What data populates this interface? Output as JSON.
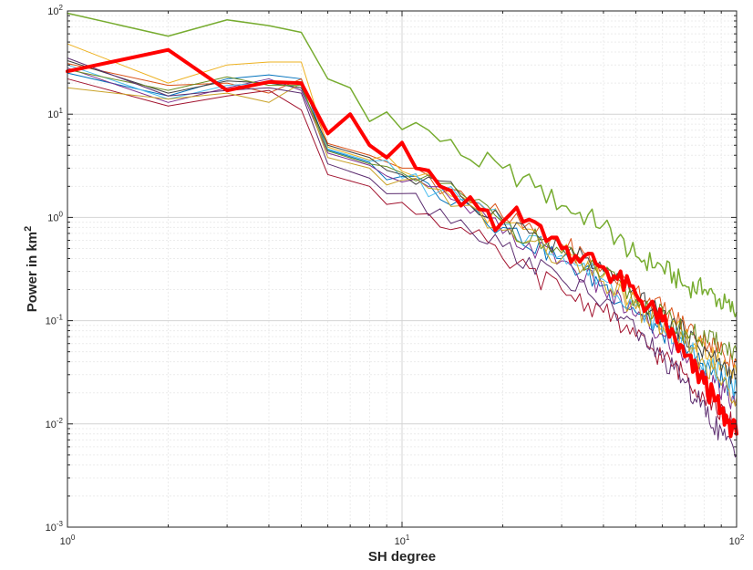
{
  "chart_data": {
    "type": "line",
    "xlabel": "SH degree",
    "ylabel": {
      "text": "Power in km",
      "sup": "2"
    },
    "xscale": "log",
    "yscale": "log",
    "xlim": [
      1,
      100
    ],
    "ylim": [
      0.001,
      100
    ],
    "grid": "major-and-minor",
    "x_ticks": [
      {
        "value": 1,
        "base": "10",
        "exp": "0"
      },
      {
        "value": 10,
        "base": "10",
        "exp": "1"
      },
      {
        "value": 100,
        "base": "10",
        "exp": "2"
      }
    ],
    "y_ticks": [
      {
        "value": 0.001,
        "base": "10",
        "exp": "-3"
      },
      {
        "value": 0.01,
        "base": "10",
        "exp": "-2"
      },
      {
        "value": 0.1,
        "base": "10",
        "exp": "-1"
      },
      {
        "value": 1,
        "base": "10",
        "exp": "0"
      },
      {
        "value": 10,
        "base": "10",
        "exp": "1"
      },
      {
        "value": 100,
        "base": "10",
        "exp": "2"
      }
    ],
    "series": [
      {
        "color": "#77AC30",
        "width": 1.5,
        "anchors": [
          [
            1,
            95
          ],
          [
            2,
            57
          ],
          [
            3,
            82
          ],
          [
            4,
            72
          ],
          [
            5,
            62
          ],
          [
            6,
            22
          ],
          [
            7,
            18
          ],
          [
            8,
            8.5
          ],
          [
            9,
            10.5
          ],
          [
            12,
            7.0
          ],
          [
            15,
            4.0
          ],
          [
            20,
            3.0
          ],
          [
            25,
            1.95
          ],
          [
            30,
            1.3
          ],
          [
            40,
            0.85
          ],
          [
            50,
            0.42
          ],
          [
            60,
            0.33
          ],
          [
            70,
            0.22
          ],
          [
            80,
            0.2
          ],
          [
            100,
            0.12
          ]
        ]
      },
      {
        "color": "#FF0000",
        "width": 4,
        "anchors": [
          [
            1,
            26
          ],
          [
            2,
            42
          ],
          [
            3,
            17
          ],
          [
            4,
            20.5
          ],
          [
            5,
            20
          ],
          [
            6,
            6.5
          ],
          [
            7,
            10
          ],
          [
            8,
            5
          ],
          [
            9,
            3.8
          ],
          [
            10,
            5.3
          ],
          [
            11,
            3.0
          ],
          [
            13,
            2.0
          ],
          [
            15,
            1.3
          ],
          [
            17,
            1.2
          ],
          [
            19,
            0.75
          ],
          [
            22,
            1.25
          ],
          [
            25,
            0.9
          ],
          [
            30,
            0.5
          ],
          [
            35,
            0.42
          ],
          [
            40,
            0.33
          ],
          [
            50,
            0.18
          ],
          [
            60,
            0.1
          ],
          [
            70,
            0.045
          ],
          [
            80,
            0.025
          ],
          [
            90,
            0.013
          ],
          [
            100,
            0.008
          ]
        ]
      },
      {
        "color": "#0072BD",
        "width": 1,
        "anchors": [
          [
            1,
            25
          ],
          [
            2,
            15
          ],
          [
            3,
            22
          ],
          [
            4,
            24
          ],
          [
            5,
            22
          ],
          [
            6,
            4.5
          ],
          [
            8,
            3.4
          ],
          [
            10,
            2.5
          ],
          [
            15,
            1.5
          ],
          [
            20,
            0.8
          ],
          [
            30,
            0.4
          ],
          [
            40,
            0.22
          ],
          [
            50,
            0.12
          ],
          [
            70,
            0.055
          ],
          [
            100,
            0.02
          ]
        ]
      },
      {
        "color": "#D95319",
        "width": 1,
        "anchors": [
          [
            1,
            31
          ],
          [
            2,
            19
          ],
          [
            3,
            20
          ],
          [
            4,
            16
          ],
          [
            5,
            22
          ],
          [
            6,
            5.2
          ],
          [
            8,
            4.0
          ],
          [
            10,
            3.0
          ],
          [
            15,
            1.8
          ],
          [
            20,
            1.0
          ],
          [
            30,
            0.55
          ],
          [
            40,
            0.33
          ],
          [
            50,
            0.2
          ],
          [
            70,
            0.09
          ],
          [
            100,
            0.04
          ]
        ]
      },
      {
        "color": "#EDB120",
        "width": 1,
        "anchors": [
          [
            1,
            48
          ],
          [
            2,
            20
          ],
          [
            3,
            30
          ],
          [
            4,
            32
          ],
          [
            5,
            32
          ],
          [
            6,
            4.8
          ],
          [
            8,
            3.6
          ],
          [
            10,
            2.8
          ],
          [
            15,
            1.6
          ],
          [
            20,
            0.9
          ],
          [
            30,
            0.47
          ],
          [
            40,
            0.27
          ],
          [
            50,
            0.15
          ],
          [
            70,
            0.07
          ],
          [
            100,
            0.03
          ]
        ]
      },
      {
        "color": "#7E2F8E",
        "width": 1,
        "anchors": [
          [
            1,
            28
          ],
          [
            2,
            13
          ],
          [
            3,
            18
          ],
          [
            4,
            22
          ],
          [
            5,
            17
          ],
          [
            6,
            4.2
          ],
          [
            8,
            3.2
          ],
          [
            10,
            2.2
          ],
          [
            15,
            1.4
          ],
          [
            20,
            0.7
          ],
          [
            30,
            0.38
          ],
          [
            40,
            0.2
          ],
          [
            50,
            0.11
          ],
          [
            70,
            0.045
          ],
          [
            100,
            0.015
          ]
        ]
      },
      {
        "color": "#4DBEEE",
        "width": 1,
        "anchors": [
          [
            1,
            30
          ],
          [
            2,
            14
          ],
          [
            3,
            19
          ],
          [
            4,
            20
          ],
          [
            5,
            18
          ],
          [
            6,
            4.6
          ],
          [
            8,
            3.5
          ],
          [
            10,
            2.4
          ],
          [
            15,
            1.5
          ],
          [
            20,
            0.85
          ],
          [
            30,
            0.43
          ],
          [
            40,
            0.25
          ],
          [
            50,
            0.14
          ],
          [
            70,
            0.06
          ],
          [
            100,
            0.022
          ]
        ]
      },
      {
        "color": "#A2142F",
        "width": 1,
        "anchors": [
          [
            1,
            22
          ],
          [
            2,
            12
          ],
          [
            3,
            15
          ],
          [
            4,
            17
          ],
          [
            5,
            11
          ],
          [
            6,
            2.6
          ],
          [
            8,
            2.0
          ],
          [
            10,
            1.4
          ],
          [
            15,
            0.8
          ],
          [
            20,
            0.4
          ],
          [
            30,
            0.2
          ],
          [
            40,
            0.12
          ],
          [
            50,
            0.07
          ],
          [
            70,
            0.03
          ],
          [
            100,
            0.009
          ]
        ]
      },
      {
        "color": "#404040",
        "width": 1,
        "anchors": [
          [
            1,
            33
          ],
          [
            2,
            16
          ],
          [
            3,
            21
          ],
          [
            4,
            20
          ],
          [
            5,
            18
          ],
          [
            6,
            5.0
          ],
          [
            8,
            3.8
          ],
          [
            10,
            2.6
          ],
          [
            15,
            1.6
          ],
          [
            20,
            0.95
          ],
          [
            30,
            0.5
          ],
          [
            40,
            0.3
          ],
          [
            50,
            0.17
          ],
          [
            70,
            0.075
          ],
          [
            100,
            0.028
          ]
        ]
      },
      {
        "color": "#C9A227",
        "width": 1,
        "anchors": [
          [
            1,
            18
          ],
          [
            2,
            14
          ],
          [
            3,
            16
          ],
          [
            4,
            13
          ],
          [
            5,
            20
          ],
          [
            6,
            3.8
          ],
          [
            8,
            3.0
          ],
          [
            10,
            2.3
          ],
          [
            15,
            1.3
          ],
          [
            20,
            0.75
          ],
          [
            30,
            0.4
          ],
          [
            40,
            0.24
          ],
          [
            50,
            0.13
          ],
          [
            70,
            0.06
          ],
          [
            100,
            0.018
          ]
        ]
      },
      {
        "color": "#6B8E23",
        "width": 1,
        "anchors": [
          [
            1,
            27
          ],
          [
            2,
            17
          ],
          [
            3,
            23
          ],
          [
            4,
            19
          ],
          [
            5,
            19
          ],
          [
            6,
            4.4
          ],
          [
            8,
            3.3
          ],
          [
            10,
            2.7
          ],
          [
            15,
            1.7
          ],
          [
            20,
            0.9
          ],
          [
            30,
            0.45
          ],
          [
            40,
            0.28
          ],
          [
            50,
            0.16
          ],
          [
            70,
            0.08
          ],
          [
            100,
            0.05
          ]
        ]
      },
      {
        "color": "#5B2C6F",
        "width": 1,
        "anchors": [
          [
            1,
            35
          ],
          [
            2,
            15
          ],
          [
            3,
            17
          ],
          [
            4,
            18
          ],
          [
            5,
            16
          ],
          [
            6,
            3.3
          ],
          [
            8,
            2.4
          ],
          [
            10,
            1.7
          ],
          [
            15,
            0.95
          ],
          [
            20,
            0.52
          ],
          [
            30,
            0.25
          ],
          [
            40,
            0.15
          ],
          [
            50,
            0.08
          ],
          [
            70,
            0.025
          ],
          [
            100,
            0.005
          ]
        ]
      }
    ]
  }
}
